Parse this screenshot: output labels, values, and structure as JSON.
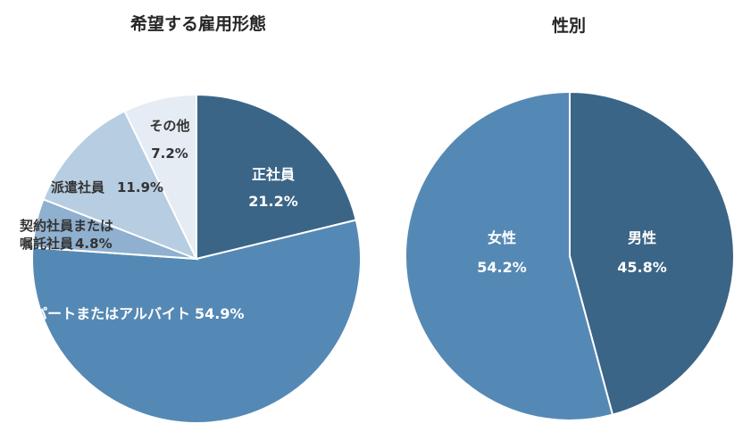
{
  "chart_data": [
    {
      "type": "pie",
      "title": "希望する雇用形態",
      "slices": [
        {
          "label": "正社員",
          "value_label": "21.2%",
          "value": 21.2,
          "color": "#3b6587"
        },
        {
          "label": "パートまたはアルバイト",
          "value_label": "54.9%",
          "value": 54.9,
          "color": "#5589b5"
        },
        {
          "label": "契約社員または",
          "label2": "嘱託社員",
          "value_label": "4.8%",
          "value": 4.8,
          "color": "#8fb0cf"
        },
        {
          "label": "派遣社員",
          "value_label": "11.9%",
          "value": 11.9,
          "color": "#b7cde1"
        },
        {
          "label": "その他",
          "value_label": "7.2%",
          "value": 7.2,
          "color": "#e5ecf3"
        }
      ]
    },
    {
      "type": "pie",
      "title": "性別",
      "slices": [
        {
          "label": "男性",
          "value_label": "45.8%",
          "value": 45.8,
          "color": "#3b6587"
        },
        {
          "label": "女性",
          "value_label": "54.2%",
          "value": 54.2,
          "color": "#5589b5"
        }
      ]
    }
  ]
}
